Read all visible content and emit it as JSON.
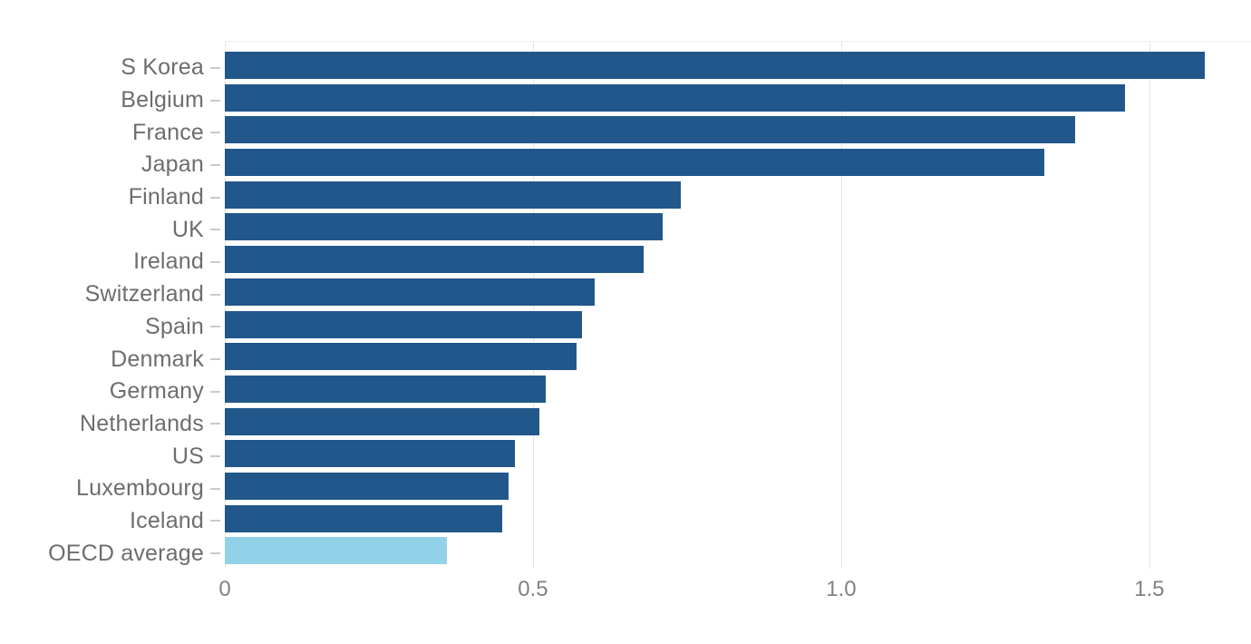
{
  "chart_data": {
    "type": "bar",
    "orientation": "horizontal",
    "title": "",
    "xlabel": "",
    "ylabel": "",
    "grid": true,
    "categories": [
      "S Korea",
      "Belgium",
      "France",
      "Japan",
      "Finland",
      "UK",
      "Ireland",
      "Switzerland",
      "Spain",
      "Denmark",
      "Germany",
      "Netherlands",
      "US",
      "Luxembourg",
      "Iceland",
      "OECD average"
    ],
    "values": [
      1.59,
      1.46,
      1.38,
      1.33,
      0.74,
      0.71,
      0.68,
      0.6,
      0.58,
      0.57,
      0.52,
      0.51,
      0.47,
      0.46,
      0.45,
      0.36
    ],
    "highlight_category": "OECD average",
    "x_ticks": [
      "0",
      "0.5",
      "1.0",
      "1.5"
    ],
    "x_tick_values": [
      0,
      0.5,
      1.0,
      1.5
    ],
    "xlim": [
      0,
      1.665
    ],
    "colors": {
      "bar": "#21578a",
      "highlight_bar": "#92d2e8",
      "gridline": "#e9e4e1",
      "tick_dash": "#cdc9c6",
      "category_label": "#6d6d6d",
      "tick_label": "#828282",
      "background": "#ffffff"
    }
  }
}
